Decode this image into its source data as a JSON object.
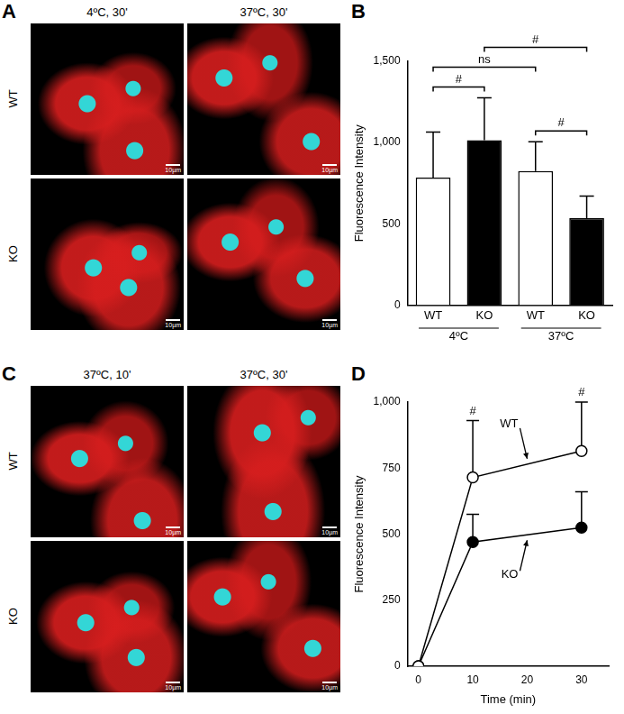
{
  "image_panels": [
    {
      "panel": "A",
      "columns": [
        "4ºC, 30'",
        "37ºC, 30'"
      ],
      "rows": [
        "WT",
        "KO"
      ],
      "scale_bar": "10µm"
    },
    {
      "panel": "C",
      "columns": [
        "37ºC, 10'",
        "37ºC, 30'"
      ],
      "rows": [
        "WT",
        "KO"
      ],
      "scale_bar": "10µm"
    }
  ],
  "chart_data": [
    {
      "panel": "B",
      "type": "bar",
      "y_label": "Fluorescence Intensity",
      "categories": [
        "WT",
        "KO",
        "WT",
        "KO"
      ],
      "groups": [
        {
          "label": "4ºC",
          "from": 0,
          "to": 1
        },
        {
          "label": "37ºC",
          "from": 2,
          "to": 3
        }
      ],
      "values": [
        785,
        1015,
        825,
        535
      ],
      "errors": [
        280,
        260,
        180,
        135
      ],
      "colors": [
        "#ffffff",
        "#000000",
        "#ffffff",
        "#000000"
      ],
      "ylim": [
        0,
        1500
      ],
      "yticks": [
        0,
        500,
        1000,
        1500
      ],
      "grid": false,
      "annotations": [
        {
          "between": [
            0,
            1
          ],
          "label": "#"
        },
        {
          "between": [
            2,
            3
          ],
          "label": "#"
        },
        {
          "between": [
            0,
            2
          ],
          "label": "ns"
        },
        {
          "between": [
            1,
            3
          ],
          "label": "#"
        }
      ]
    },
    {
      "panel": "D",
      "type": "line",
      "x_label": "Time (min)",
      "y_label": "Fluorescence Intensity",
      "x": [
        0,
        10,
        30
      ],
      "series": [
        {
          "name": "WT",
          "color": "#ffffff",
          "marker": "circle",
          "values": [
            0,
            715,
            815
          ],
          "errors": [
            0,
            215,
            185
          ]
        },
        {
          "name": "KO",
          "color": "#000000",
          "marker": "circle",
          "values": [
            0,
            470,
            525
          ],
          "errors": [
            0,
            105,
            135
          ]
        }
      ],
      "xlim": [
        -2,
        35
      ],
      "xticks": [
        0,
        10,
        20,
        30
      ],
      "ylim": [
        0,
        1000
      ],
      "yticks": [
        0,
        250,
        500,
        750,
        1000
      ],
      "grid": false,
      "annotations": [
        {
          "x": 10,
          "label": "#"
        },
        {
          "x": 30,
          "label": "#"
        }
      ]
    }
  ]
}
